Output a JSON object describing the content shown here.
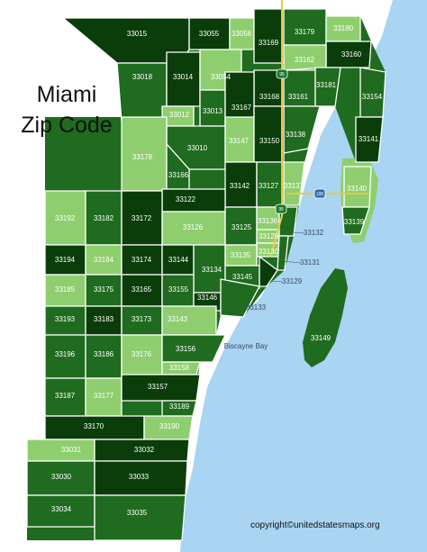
{
  "title_line1": "Miami",
  "title_line2": "Zip Code",
  "copyright": "copyright©unitedstatesmaps.org",
  "water_label": "Biscayne Bay",
  "highway_shields": [
    "95",
    "95",
    "195"
  ],
  "colors": {
    "water": "#a9d4f2",
    "dark": "#0a3d0a",
    "medium": "#1f6b1f",
    "light": "#8fce6e",
    "highway": "#e6c84a"
  },
  "zips": [
    {
      "code": "33015",
      "shade": "dark"
    },
    {
      "code": "33055",
      "shade": "dark"
    },
    {
      "code": "33056",
      "shade": "light"
    },
    {
      "code": "33169",
      "shade": "dark"
    },
    {
      "code": "33179",
      "shade": "medium"
    },
    {
      "code": "33180",
      "shade": "light"
    },
    {
      "code": "33160",
      "shade": "dark"
    },
    {
      "code": "33162",
      "shade": "light"
    },
    {
      "code": "33018",
      "shade": "medium"
    },
    {
      "code": "33014",
      "shade": "dark"
    },
    {
      "code": "33054",
      "shade": "light"
    },
    {
      "code": "33168",
      "shade": "dark"
    },
    {
      "code": "33161",
      "shade": "medium"
    },
    {
      "code": "33181",
      "shade": "medium"
    },
    {
      "code": "33154",
      "shade": "medium"
    },
    {
      "code": "33012",
      "shade": "light"
    },
    {
      "code": "33013",
      "shade": "medium"
    },
    {
      "code": "33167",
      "shade": "dark"
    },
    {
      "code": "33138",
      "shade": "medium"
    },
    {
      "code": "33141",
      "shade": "dark"
    },
    {
      "code": "33010",
      "shade": "medium"
    },
    {
      "code": "33147",
      "shade": "light"
    },
    {
      "code": "33150",
      "shade": "dark"
    },
    {
      "code": "33178",
      "shade": "light"
    },
    {
      "code": "33166",
      "shade": "medium"
    },
    {
      "code": "33142",
      "shade": "dark"
    },
    {
      "code": "33127",
      "shade": "medium"
    },
    {
      "code": "33137",
      "shade": "light"
    },
    {
      "code": "33140",
      "shade": "light"
    },
    {
      "code": "33122",
      "shade": "dark"
    },
    {
      "code": "33139",
      "shade": "medium"
    },
    {
      "code": "33192",
      "shade": "light"
    },
    {
      "code": "33182",
      "shade": "medium"
    },
    {
      "code": "33172",
      "shade": "dark"
    },
    {
      "code": "33126",
      "shade": "light"
    },
    {
      "code": "33125",
      "shade": "medium"
    },
    {
      "code": "33136",
      "shade": "light"
    },
    {
      "code": "33128",
      "shade": "light"
    },
    {
      "code": "33130",
      "shade": "light"
    },
    {
      "code": "33132",
      "shade": "medium"
    },
    {
      "code": "33194",
      "shade": "dark"
    },
    {
      "code": "33184",
      "shade": "light"
    },
    {
      "code": "33174",
      "shade": "dark"
    },
    {
      "code": "33144",
      "shade": "dark"
    },
    {
      "code": "33134",
      "shade": "medium"
    },
    {
      "code": "33135",
      "shade": "light"
    },
    {
      "code": "33131",
      "shade": "medium"
    },
    {
      "code": "33185",
      "shade": "light"
    },
    {
      "code": "33175",
      "shade": "medium"
    },
    {
      "code": "33165",
      "shade": "dark"
    },
    {
      "code": "33155",
      "shade": "medium"
    },
    {
      "code": "33145",
      "shade": "medium"
    },
    {
      "code": "33129",
      "shade": "dark"
    },
    {
      "code": "33146",
      "shade": "dark"
    },
    {
      "code": "33133",
      "shade": "medium"
    },
    {
      "code": "33193",
      "shade": "medium"
    },
    {
      "code": "33183",
      "shade": "dark"
    },
    {
      "code": "33173",
      "shade": "medium"
    },
    {
      "code": "33143",
      "shade": "light"
    },
    {
      "code": "33196",
      "shade": "medium"
    },
    {
      "code": "33186",
      "shade": "medium"
    },
    {
      "code": "33176",
      "shade": "light"
    },
    {
      "code": "33156",
      "shade": "medium"
    },
    {
      "code": "33158",
      "shade": "light"
    },
    {
      "code": "33149",
      "shade": "medium"
    },
    {
      "code": "33187",
      "shade": "medium"
    },
    {
      "code": "33177",
      "shade": "light"
    },
    {
      "code": "33157",
      "shade": "dark"
    },
    {
      "code": "33189",
      "shade": "medium"
    },
    {
      "code": "33170",
      "shade": "dark"
    },
    {
      "code": "33190",
      "shade": "light"
    },
    {
      "code": "33031",
      "shade": "light"
    },
    {
      "code": "33032",
      "shade": "dark"
    },
    {
      "code": "33030",
      "shade": "medium"
    },
    {
      "code": "33033",
      "shade": "dark"
    },
    {
      "code": "33034",
      "shade": "medium"
    },
    {
      "code": "33035",
      "shade": "medium"
    }
  ]
}
